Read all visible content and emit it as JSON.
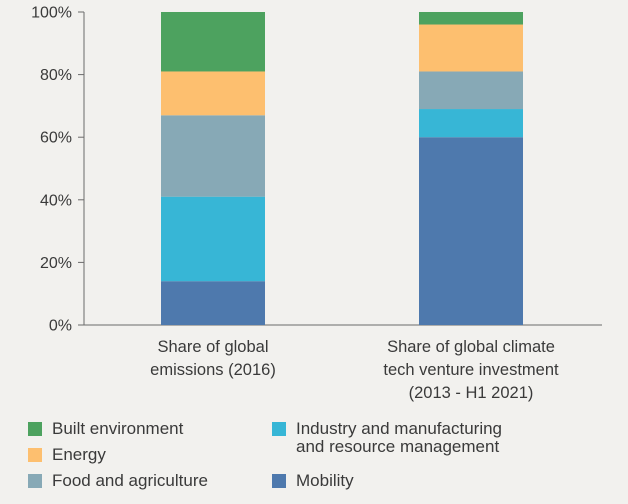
{
  "chart_data": {
    "type": "bar",
    "stacked": true,
    "categories": [
      "Share of global\nemissions (2016)",
      "Share of global climate\ntech venture investment\n(2013 - H1 2021)"
    ],
    "series": [
      {
        "name": "Mobility",
        "color": "#4e79ad",
        "values": [
          14,
          60
        ]
      },
      {
        "name": "Industry and manufacturing\nand resource management",
        "color": "#37b6d6",
        "values": [
          27,
          9
        ]
      },
      {
        "name": "Food and agriculture",
        "color": "#87a9b6",
        "values": [
          26,
          12
        ]
      },
      {
        "name": "Energy",
        "color": "#fdbf6f",
        "values": [
          14,
          15
        ]
      },
      {
        "name": "Built environment",
        "color": "#4da25f",
        "values": [
          19,
          4
        ]
      }
    ],
    "yticks": [
      "0%",
      "20%",
      "40%",
      "60%",
      "80%",
      "100%"
    ],
    "ylim": [
      0,
      100
    ],
    "legend_position": "bottom"
  },
  "legend": {
    "items": [
      {
        "label": "Built environment",
        "color": "#4da25f"
      },
      {
        "label": "Energy",
        "color": "#fdbf6f"
      },
      {
        "label": "Food and agriculture",
        "color": "#87a9b6"
      },
      {
        "label": "Industry and manufacturing\nand resource management",
        "color": "#37b6d6"
      },
      {
        "label": "Mobility",
        "color": "#4e79ad"
      }
    ]
  }
}
